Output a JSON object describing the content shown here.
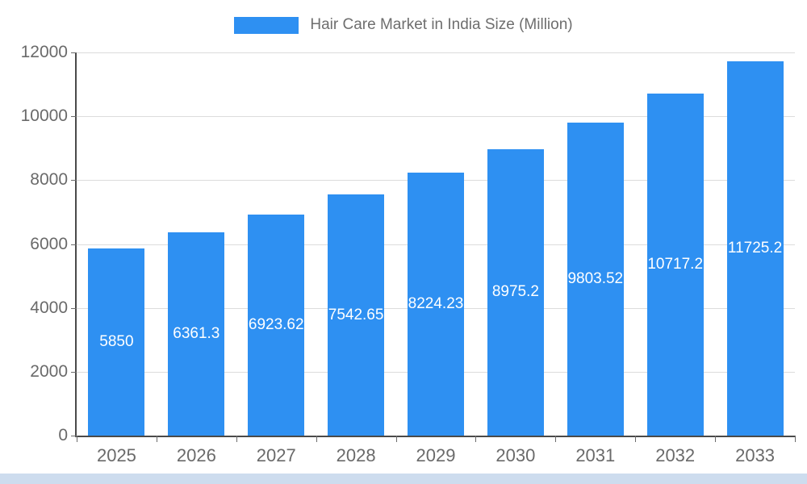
{
  "chart_data": {
    "type": "bar",
    "title": "Hair Care Market in India Size (Million)",
    "categories": [
      "2025",
      "2026",
      "2027",
      "2028",
      "2029",
      "2030",
      "2031",
      "2032",
      "2033"
    ],
    "values": [
      5850,
      6361.3,
      6923.62,
      7542.65,
      8224.23,
      8975.2,
      9803.52,
      10717.2,
      11725.2
    ],
    "bar_labels": [
      "5850",
      "6361.3",
      "6923.62",
      "7542.65",
      "8224.23",
      "8975.2",
      "9803.52",
      "10717.2",
      "11725.2"
    ],
    "xlabel": "",
    "ylabel": "",
    "y_ticks": [
      0,
      2000,
      4000,
      6000,
      8000,
      10000,
      12000
    ],
    "ylim": [
      0,
      12000
    ],
    "grid": true,
    "legend_position": "top",
    "colors": {
      "bar": "#2E90F2",
      "bar_label_text": "#ffffff",
      "axis_text": "#6a6a6a",
      "grid_line": "#dcdcdc",
      "axis_line": "#4a4a4a",
      "bottom_strip": "#cddcee"
    }
  }
}
